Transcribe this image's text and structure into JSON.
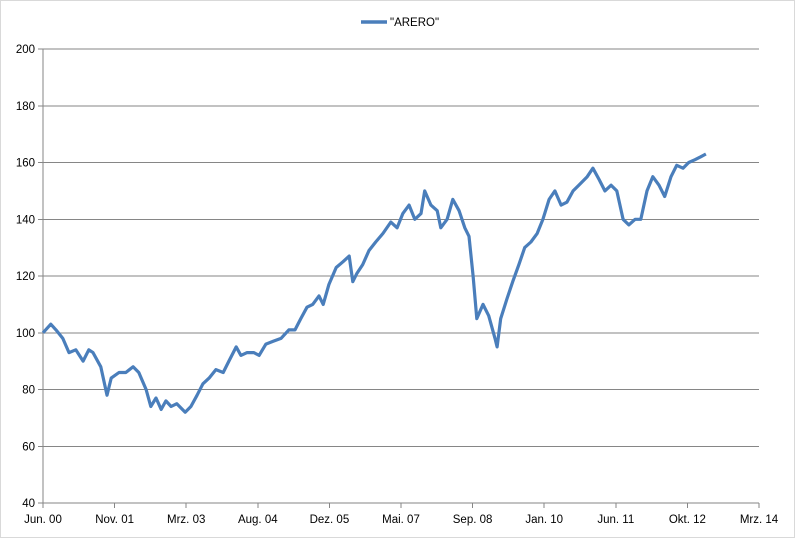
{
  "chart_data": {
    "type": "line",
    "title": "",
    "xlabel": "",
    "ylabel": "",
    "ylim": [
      40,
      200
    ],
    "yticks": [
      40,
      60,
      80,
      100,
      120,
      140,
      160,
      180,
      200
    ],
    "xlim": [
      2000.42,
      2014.17
    ],
    "xtick_labels": [
      "Jun. 00",
      "Nov. 01",
      "Mrz. 03",
      "Aug. 04",
      "Dez. 05",
      "Mai. 07",
      "Sep. 08",
      "Jan. 10",
      "Jun. 11",
      "Okt. 12",
      "Mrz. 14"
    ],
    "grid": "horizontal",
    "legend": {
      "placement": "top-center",
      "entries": [
        "\"ARERO\""
      ]
    },
    "colors": {
      "series": "#4a7ebb",
      "grid": "#868686"
    },
    "series": [
      {
        "name": "\"ARERO\"",
        "x": [
          2000.42,
          2000.57,
          2000.67,
          2000.8,
          2000.92,
          2001.05,
          2001.19,
          2001.3,
          2001.38,
          2001.53,
          2001.65,
          2001.73,
          2001.88,
          2002.01,
          2002.15,
          2002.26,
          2002.4,
          2002.49,
          2002.59,
          2002.69,
          2002.78,
          2002.88,
          2002.99,
          2003.15,
          2003.26,
          2003.38,
          2003.49,
          2003.61,
          2003.74,
          2003.88,
          2003.99,
          2004.13,
          2004.22,
          2004.34,
          2004.47,
          2004.57,
          2004.7,
          2004.84,
          2004.99,
          2005.14,
          2005.26,
          2005.37,
          2005.49,
          2005.6,
          2005.72,
          2005.8,
          2005.91,
          2006.05,
          2006.18,
          2006.3,
          2006.37,
          2006.45,
          2006.56,
          2006.68,
          2006.81,
          2006.95,
          2007.1,
          2007.22,
          2007.33,
          2007.45,
          2007.56,
          2007.68,
          2007.75,
          2007.87,
          2007.99,
          2008.06,
          2008.18,
          2008.29,
          2008.41,
          2008.52,
          2008.6,
          2008.68,
          2008.75,
          2008.87,
          2008.98,
          2009.1,
          2009.14,
          2009.21,
          2009.33,
          2009.44,
          2009.56,
          2009.67,
          2009.79,
          2009.91,
          2010.02,
          2010.14,
          2010.25,
          2010.37,
          2010.48,
          2010.6,
          2010.71,
          2010.87,
          2010.98,
          2011.1,
          2011.21,
          2011.33,
          2011.44,
          2011.56,
          2011.67,
          2011.79,
          2011.9,
          2012.02,
          2012.13,
          2012.25,
          2012.36,
          2012.48,
          2012.59,
          2012.71,
          2012.82,
          2012.94,
          2013.05,
          2013.15
        ],
        "values": [
          100,
          103,
          101,
          98,
          93,
          94,
          90,
          94,
          93,
          88,
          78,
          84,
          86,
          86,
          88,
          86,
          80,
          74,
          77,
          73,
          76,
          74,
          75,
          72,
          74,
          78,
          82,
          84,
          87,
          86,
          90,
          95,
          92,
          93,
          93,
          92,
          96,
          97,
          98,
          101,
          101,
          105,
          109,
          110,
          113,
          110,
          117,
          123,
          125,
          127,
          118,
          121,
          124,
          129,
          132,
          135,
          139,
          137,
          142,
          145,
          140,
          142,
          150,
          145,
          143,
          137,
          140,
          147,
          143,
          137,
          134,
          120,
          105,
          110,
          106,
          98,
          95,
          105,
          112,
          118,
          124,
          130,
          132,
          135,
          140,
          147,
          150,
          145,
          146,
          150,
          152,
          155,
          158,
          154,
          150,
          152,
          150,
          140,
          138,
          140,
          140,
          150,
          155,
          152,
          148,
          155,
          159,
          158,
          160,
          161,
          162,
          163
        ]
      }
    ]
  }
}
